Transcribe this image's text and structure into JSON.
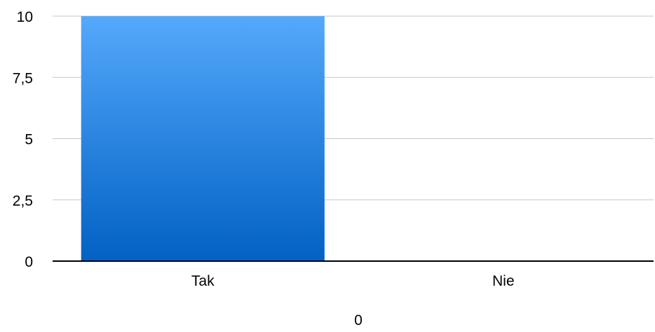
{
  "chart_data": {
    "type": "bar",
    "categories": [
      "Tak",
      "Nie"
    ],
    "values": [
      10,
      0
    ],
    "xlabel": "0",
    "ylabel": "",
    "ylim": [
      0,
      10
    ],
    "yticks": [
      0,
      2.5,
      5,
      7.5,
      10
    ],
    "ytick_labels": [
      "0",
      "2,5",
      "5",
      "7,5",
      "10"
    ],
    "grid": true,
    "legend": "none",
    "colors": {
      "bar_top": "#54a9fb",
      "bar_bottom": "#0261c4",
      "grid": "#c7c7c7",
      "axis": "#000000"
    }
  }
}
